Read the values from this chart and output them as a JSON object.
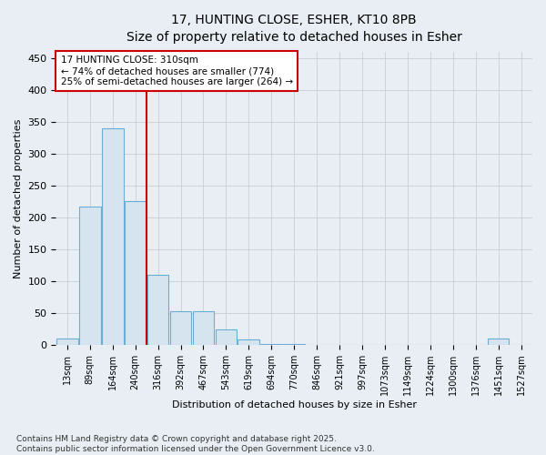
{
  "title_line1": "17, HUNTING CLOSE, ESHER, KT10 8PB",
  "title_line2": "Size of property relative to detached houses in Esher",
  "xlabel": "Distribution of detached houses by size in Esher",
  "ylabel": "Number of detached properties",
  "categories": [
    "13sqm",
    "89sqm",
    "164sqm",
    "240sqm",
    "316sqm",
    "392sqm",
    "467sqm",
    "543sqm",
    "619sqm",
    "694sqm",
    "770sqm",
    "846sqm",
    "921sqm",
    "997sqm",
    "1073sqm",
    "1149sqm",
    "1224sqm",
    "1300sqm",
    "1376sqm",
    "1451sqm",
    "1527sqm"
  ],
  "values": [
    10,
    217,
    340,
    225,
    110,
    53,
    53,
    24,
    8,
    2,
    1,
    0,
    0,
    0,
    0,
    0,
    0,
    0,
    0,
    10,
    0
  ],
  "bar_color": "#d6e4f0",
  "bar_edge_color": "#6aaed6",
  "vline_index": 4,
  "annotation_title": "17 HUNTING CLOSE: 310sqm",
  "annotation_line2": "← 74% of detached houses are smaller (774)",
  "annotation_line3": "25% of semi-detached houses are larger (264) →",
  "annotation_box_color": "#ffffff",
  "annotation_box_edge": "#cc0000",
  "vline_color": "#cc0000",
  "ylim": [
    0,
    460
  ],
  "yticks": [
    0,
    50,
    100,
    150,
    200,
    250,
    300,
    350,
    400,
    450
  ],
  "footer_line1": "Contains HM Land Registry data © Crown copyright and database right 2025.",
  "footer_line2": "Contains public sector information licensed under the Open Government Licence v3.0.",
  "background_color": "#e8eef4",
  "plot_bg_color": "#e8eef4",
  "grid_color": "#c0c8d0"
}
